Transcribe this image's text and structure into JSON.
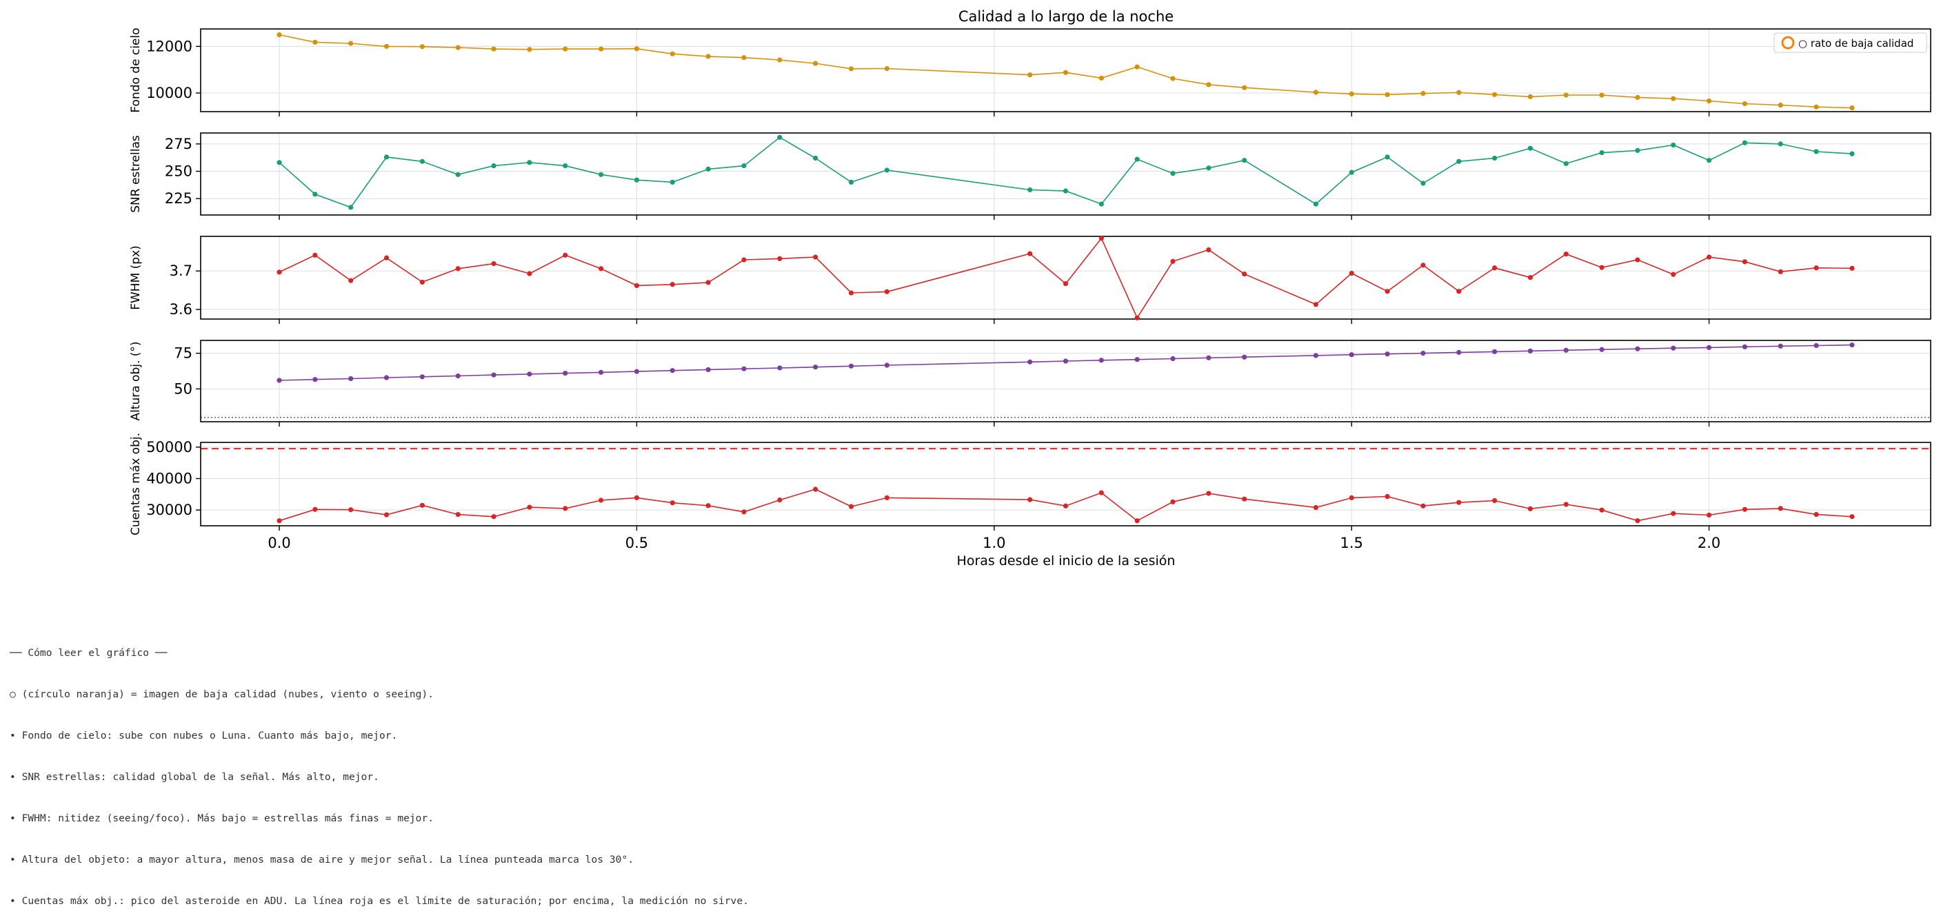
{
  "figure_title": "Calidad a lo largo de la noche",
  "x_axis_label": "Horas desde el inicio de la sesión",
  "legend": {
    "label": "○ rato de baja calidad",
    "marker_color": "#ff7f0e"
  },
  "notes": [
    "── Cómo leer el gráfico ──",
    "○ (círculo naranja) = imagen de baja calidad (nubes, viento o seeing).",
    "• Fondo de cielo: sube con nubes o Luna. Cuanto más bajo, mejor.",
    "• SNR estrellas: calidad global de la señal. Más alto, mejor.",
    "• FWHM: nitidez (seeing/foco). Más bajo = estrellas más finas = mejor.",
    "• Altura del objeto: a mayor altura, menos masa de aire y mejor señal. La línea punteada marca los 30°.",
    "• Cuentas máx obj.: pico del asteroide en ADU. La línea roja es el límite de saturación; por encima, la medición no sirve."
  ],
  "chart_data": [
    {
      "type": "line",
      "ylabel": "Fondo de cielo",
      "color": "#d4920a",
      "xlim": [
        -0.11,
        2.31
      ],
      "ylim": [
        9200,
        12750
      ],
      "yticks": [
        10000,
        12000
      ],
      "ytick_labels": [
        "10000",
        "12000"
      ],
      "xticks": [
        0.0,
        0.5,
        1.0,
        1.5,
        2.0
      ],
      "grid": true,
      "legend_position": "top-right",
      "x": [
        0.0,
        0.05,
        0.1,
        0.15,
        0.2,
        0.25,
        0.3,
        0.35,
        0.4,
        0.45,
        0.5,
        0.55,
        0.6,
        0.65,
        0.7,
        0.75,
        0.8,
        0.85,
        1.05,
        1.1,
        1.15,
        1.2,
        1.25,
        1.3,
        1.35,
        1.45,
        1.5,
        1.55,
        1.6,
        1.65,
        1.7,
        1.75,
        1.8,
        1.85,
        1.9,
        1.95,
        2.0,
        2.05,
        2.1,
        2.15,
        2.2
      ],
      "y": [
        12500,
        12180,
        12130,
        12000,
        11990,
        11950,
        11890,
        11870,
        11890,
        11890,
        11900,
        11680,
        11570,
        11520,
        11420,
        11270,
        11040,
        11050,
        10780,
        10880,
        10640,
        11120,
        10620,
        10360,
        10230,
        10030,
        9960,
        9930,
        9980,
        10020,
        9930,
        9840,
        9910,
        9910,
        9810,
        9760,
        9660,
        9540,
        9480,
        9400,
        9360
      ]
    },
    {
      "type": "line",
      "ylabel": "SNR estrellas",
      "color": "#1a9e77",
      "xlim": [
        -0.11,
        2.31
      ],
      "ylim": [
        210,
        285
      ],
      "yticks": [
        225,
        250,
        275
      ],
      "ytick_labels": [
        "225",
        "250",
        "275"
      ],
      "xticks": [
        0.0,
        0.5,
        1.0,
        1.5,
        2.0
      ],
      "grid": true,
      "x": [
        0.0,
        0.05,
        0.1,
        0.15,
        0.2,
        0.25,
        0.3,
        0.35,
        0.4,
        0.45,
        0.5,
        0.55,
        0.6,
        0.65,
        0.7,
        0.75,
        0.8,
        0.85,
        1.05,
        1.1,
        1.15,
        1.2,
        1.25,
        1.3,
        1.35,
        1.45,
        1.5,
        1.55,
        1.6,
        1.65,
        1.7,
        1.75,
        1.8,
        1.85,
        1.9,
        1.95,
        2.0,
        2.05,
        2.1,
        2.15,
        2.2
      ],
      "y": [
        258,
        229,
        217,
        263,
        259,
        247,
        255,
        258,
        255,
        247,
        242,
        240,
        252,
        255,
        281,
        262,
        240,
        251,
        233,
        232,
        220,
        261,
        248,
        253,
        260,
        220,
        249,
        263,
        239,
        259,
        262,
        271,
        257,
        267,
        269,
        274,
        260,
        276,
        275,
        268,
        266
      ]
    },
    {
      "type": "line",
      "ylabel": "FWHM (px)",
      "color": "#d62728",
      "xlim": [
        -0.11,
        2.31
      ],
      "ylim": [
        3.575,
        3.79
      ],
      "yticks": [
        3.6,
        3.7
      ],
      "ytick_labels": [
        "3.6",
        "3.7"
      ],
      "xticks": [
        0.0,
        0.5,
        1.0,
        1.5,
        2.0
      ],
      "grid": true,
      "x": [
        0.0,
        0.05,
        0.1,
        0.15,
        0.2,
        0.25,
        0.3,
        0.35,
        0.4,
        0.45,
        0.5,
        0.55,
        0.6,
        0.65,
        0.7,
        0.75,
        0.8,
        0.85,
        1.05,
        1.1,
        1.15,
        1.2,
        1.25,
        1.3,
        1.35,
        1.45,
        1.5,
        1.55,
        1.6,
        1.65,
        1.7,
        1.75,
        1.8,
        1.85,
        1.9,
        1.95,
        2.0,
        2.05,
        2.1,
        2.15,
        2.2
      ],
      "y": [
        3.697,
        3.741,
        3.675,
        3.734,
        3.671,
        3.706,
        3.719,
        3.693,
        3.741,
        3.706,
        3.662,
        3.665,
        3.67,
        3.729,
        3.732,
        3.736,
        3.643,
        3.646,
        3.745,
        3.667,
        3.785,
        3.578,
        3.725,
        3.755,
        3.692,
        3.613,
        3.694,
        3.647,
        3.715,
        3.647,
        3.708,
        3.683,
        3.744,
        3.709,
        3.729,
        3.691,
        3.736,
        3.724,
        3.698,
        3.708,
        3.707
      ]
    },
    {
      "type": "line",
      "ylabel": "Altura obj. (°)",
      "color": "#7b3fa0",
      "xlim": [
        -0.11,
        2.31
      ],
      "ylim": [
        27,
        84
      ],
      "yticks": [
        50,
        75
      ],
      "ytick_labels": [
        "50",
        "75"
      ],
      "xticks": [
        0.0,
        0.5,
        1.0,
        1.5,
        2.0
      ],
      "grid": true,
      "reference_line": {
        "y": 30,
        "style": "dotted",
        "color": "#555555"
      },
      "x": [
        0.0,
        0.05,
        0.1,
        0.15,
        0.2,
        0.25,
        0.3,
        0.35,
        0.4,
        0.45,
        0.5,
        0.55,
        0.6,
        0.65,
        0.7,
        0.75,
        0.8,
        0.85,
        1.05,
        1.1,
        1.15,
        1.2,
        1.25,
        1.3,
        1.35,
        1.45,
        1.5,
        1.55,
        1.6,
        1.65,
        1.7,
        1.75,
        1.8,
        1.85,
        1.9,
        1.95,
        2.0,
        2.05,
        2.1,
        2.15,
        2.2
      ],
      "y": [
        56.0,
        56.6,
        57.2,
        57.9,
        58.5,
        59.1,
        59.8,
        60.4,
        61.0,
        61.6,
        62.2,
        62.9,
        63.5,
        64.1,
        64.7,
        65.3,
        66.0,
        66.6,
        68.9,
        69.5,
        70.1,
        70.6,
        71.2,
        71.8,
        72.3,
        73.4,
        74.0,
        74.5,
        75.0,
        75.6,
        76.1,
        76.6,
        77.1,
        77.6,
        78.1,
        78.6,
        79.0,
        79.5,
        80.0,
        80.4,
        80.8
      ]
    },
    {
      "type": "line",
      "ylabel": "Cuentas máx obj.",
      "color": "#d62728",
      "xlim": [
        -0.11,
        2.31
      ],
      "ylim": [
        25000,
        51500
      ],
      "yticks": [
        30000,
        40000,
        50000
      ],
      "ytick_labels": [
        "30000",
        "40000",
        "50000"
      ],
      "xticks": [
        0.0,
        0.5,
        1.0,
        1.5,
        2.0
      ],
      "xtick_labels": [
        "0.0",
        "0.5",
        "1.0",
        "1.5",
        "2.0"
      ],
      "xlabel": "Horas desde el inicio de la sesión",
      "grid": true,
      "reference_line": {
        "y": 49500,
        "style": "dashed",
        "color": "#d62728"
      },
      "x": [
        0.0,
        0.05,
        0.1,
        0.15,
        0.2,
        0.25,
        0.3,
        0.35,
        0.4,
        0.45,
        0.5,
        0.55,
        0.6,
        0.65,
        0.7,
        0.75,
        0.8,
        0.85,
        1.05,
        1.1,
        1.15,
        1.2,
        1.25,
        1.3,
        1.35,
        1.45,
        1.5,
        1.55,
        1.6,
        1.65,
        1.7,
        1.75,
        1.8,
        1.85,
        1.9,
        1.95,
        2.0,
        2.05,
        2.1,
        2.15,
        2.2
      ],
      "y": [
        26600,
        30200,
        30100,
        28500,
        31500,
        28600,
        27900,
        30900,
        30500,
        33100,
        33900,
        32300,
        31400,
        29400,
        33200,
        36600,
        31100,
        33900,
        33300,
        31300,
        35500,
        26600,
        32600,
        35300,
        33500,
        30800,
        33900,
        34300,
        31300,
        32400,
        33000,
        30400,
        31800,
        30000,
        26600,
        28900,
        28400,
        30200,
        30500,
        28600,
        27900
      ]
    }
  ]
}
